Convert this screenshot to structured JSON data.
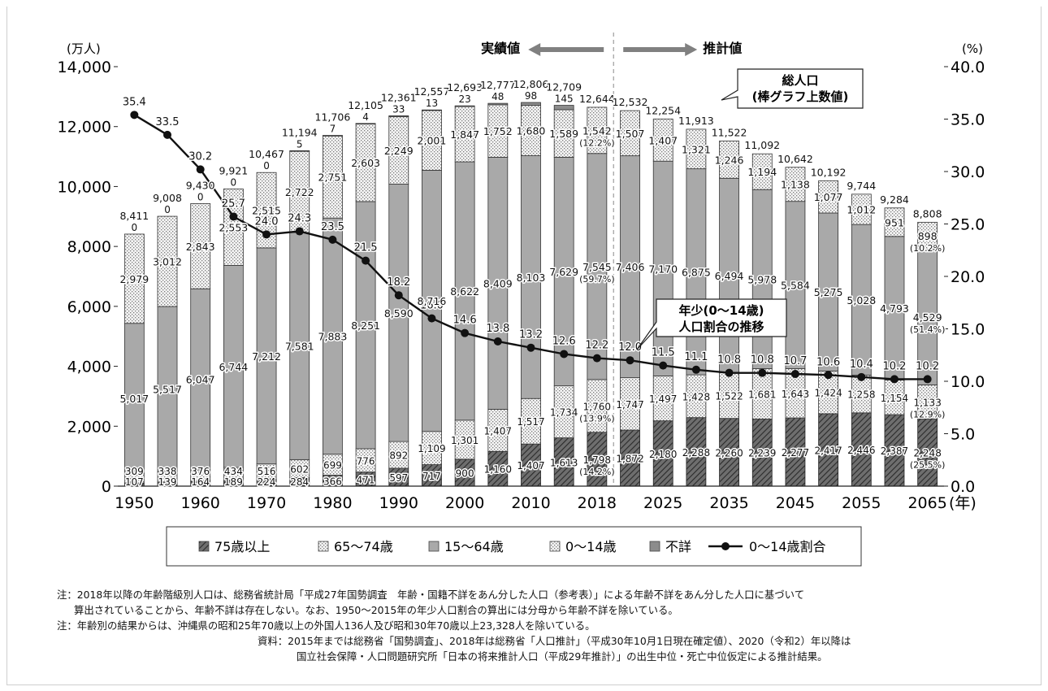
{
  "chart_data": {
    "type": "bar",
    "categories": [
      "1950",
      "1955",
      "1960",
      "1965",
      "1970",
      "1975",
      "1980",
      "1985",
      "1990",
      "1995",
      "2000",
      "2005",
      "2010",
      "2015",
      "2018",
      "2020",
      "2025",
      "2030",
      "2035",
      "2040",
      "2045",
      "2050",
      "2055",
      "2060",
      "2065"
    ],
    "x_tick_labels": [
      "1950",
      "1960",
      "1970",
      "1980",
      "1990",
      "2000",
      "2010",
      "2018",
      "2025",
      "2035",
      "2045",
      "2055",
      "2065"
    ],
    "x_unit": "(年)",
    "y_left_unit": "(万人)",
    "y_left_ticks": [
      "0",
      "2,000",
      "4,000",
      "6,000",
      "8,000",
      "10,000",
      "12,000",
      "14,000"
    ],
    "y_left_range": [
      0,
      14000
    ],
    "y_right_unit": "(%)",
    "y_right_ticks": [
      "0.0",
      "5.0",
      "10.0",
      "15.0",
      "20.0",
      "25.0",
      "30.0",
      "35.0",
      "40.0"
    ],
    "y_right_range": [
      0,
      40
    ],
    "series": [
      {
        "name": "75歳以上",
        "values": [
          107,
          139,
          164,
          189,
          224,
          284,
          366,
          471,
          597,
          717,
          900,
          1160,
          1407,
          1613,
          1798,
          1872,
          2180,
          2288,
          2260,
          2239,
          2277,
          2417,
          2446,
          2387,
          2248
        ]
      },
      {
        "name": "65〜74歳",
        "values": [
          309,
          338,
          376,
          434,
          516,
          602,
          699,
          776,
          892,
          1109,
          1301,
          1407,
          1517,
          1734,
          1760,
          1747,
          1497,
          1428,
          1522,
          1681,
          1643,
          1424,
          1258,
          1154,
          1133
        ]
      },
      {
        "name": "15〜64歳",
        "values": [
          5017,
          5517,
          6047,
          6744,
          7212,
          7581,
          7883,
          8251,
          8590,
          8716,
          8622,
          8409,
          8103,
          7629,
          7545,
          7406,
          7170,
          6875,
          6494,
          5978,
          5584,
          5275,
          5028,
          4793,
          4529
        ]
      },
      {
        "name": "0〜14歳",
        "values": [
          2979,
          3012,
          2843,
          2553,
          2515,
          2722,
          2751,
          2603,
          2249,
          2001,
          1847,
          1752,
          1680,
          1589,
          1542,
          1507,
          1407,
          1321,
          1246,
          1194,
          1138,
          1077,
          1012,
          951,
          898
        ]
      },
      {
        "name": "不詳",
        "values": [
          0,
          0,
          0,
          0,
          0,
          5,
          7,
          4,
          33,
          13,
          23,
          48,
          98,
          145,
          null,
          null,
          null,
          null,
          null,
          null,
          null,
          null,
          null,
          null,
          null
        ]
      }
    ],
    "totals": [
      8411,
      9008,
      9430,
      9921,
      10467,
      11194,
      11706,
      12105,
      12361,
      12557,
      12693,
      12777,
      12806,
      12709,
      12644,
      12532,
      12254,
      11913,
      11522,
      11092,
      10642,
      10192,
      9744,
      9284,
      8808
    ],
    "ratio_series": {
      "name": "0〜14歳割合",
      "values": [
        35.4,
        33.5,
        30.2,
        25.7,
        24.0,
        24.3,
        23.5,
        21.5,
        18.2,
        16.0,
        14.6,
        13.8,
        13.2,
        12.6,
        12.2,
        12.0,
        11.5,
        11.1,
        10.8,
        10.8,
        10.7,
        10.6,
        10.4,
        10.2,
        10.2
      ]
    },
    "share_labels": {
      "2018": {
        "75": "(14.2%)",
        "65": "(13.9%)",
        "15": "(59.7%)",
        "0": "(12.2%)"
      },
      "2065": {
        "75": "(25.5%)",
        "65": "(12.9%)",
        "15": "(51.4%)",
        "0": "(10.2%)"
      }
    },
    "legend": {
      "placement": "bottom-center",
      "items": [
        "75歳以上",
        "65〜74歳",
        "15〜64歳",
        "0〜14歳",
        "不詳",
        "0〜14歳割合"
      ]
    },
    "annotations": {
      "actual": "実績値",
      "projected": "推計値",
      "total_callout": [
        "総人口",
        "(棒グラフ上数値)"
      ],
      "ratio_callout": [
        "年少(0〜14歳)",
        "人口割合の推移"
      ]
    },
    "colors": {
      "u75": "#4d4d4d",
      "a65": "#ebebeb",
      "a15": "#a9a9a9",
      "a0": "#f2f2f2",
      "unk": "#8c8c8c",
      "line": "#111111"
    }
  },
  "notes": [
    "注：2018年以降の年齢階級別人口は、総務省統計局「平成27年国勢調査　年齢・国籍不詳をあん分した人口（参考表）」による年齢不詳をあん分した人口に基づいて",
    "算出されていることから、年齢不詳は存在しない。なお、1950〜2015年の年少人口割合の算出には分母から年齢不詳を除いている。",
    "注：年齢別の結果からは、沖縄県の昭和25年70歳以上の外国人136人及び昭和30年70歳以上23,328人を除いている。",
    "資料：2015年までは総務省「国勢調査」、2018年は総務省「人口推計」（平成30年10月1日現在確定値）、2020（令和2）年以降は",
    "国立社会保障・人口問題研究所「日本の将来推計人口（平成29年推計）」の出生中位・死亡中位仮定による推計結果。"
  ]
}
